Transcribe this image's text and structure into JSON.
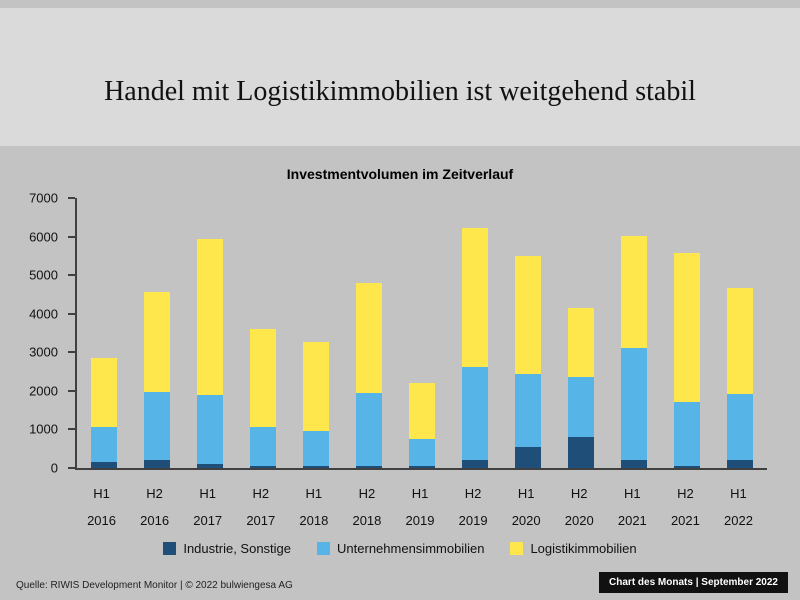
{
  "slide": {
    "title": "Handel mit Logistikimmobilien ist weitgehend stabil"
  },
  "chart_data": {
    "type": "bar",
    "stacked": true,
    "title": "Investmentvolumen im Zeitverlauf",
    "xlabel": "",
    "ylabel": "",
    "ylim": [
      0,
      7000
    ],
    "ytick_step": 1000,
    "grid": false,
    "legend_position": "bottom",
    "categories": [
      {
        "half": "H1",
        "year": "2016"
      },
      {
        "half": "H2",
        "year": "2016"
      },
      {
        "half": "H1",
        "year": "2017"
      },
      {
        "half": "H2",
        "year": "2017"
      },
      {
        "half": "H1",
        "year": "2018"
      },
      {
        "half": "H2",
        "year": "2018"
      },
      {
        "half": "H1",
        "year": "2019"
      },
      {
        "half": "H2",
        "year": "2019"
      },
      {
        "half": "H1",
        "year": "2020"
      },
      {
        "half": "H2",
        "year": "2020"
      },
      {
        "half": "H1",
        "year": "2021"
      },
      {
        "half": "H2",
        "year": "2021"
      },
      {
        "half": "H1",
        "year": "2022"
      }
    ],
    "series": [
      {
        "name": "Industrie, Sonstige",
        "key": "industrie-sonstige",
        "color": "#1f4e79",
        "values": [
          150,
          200,
          100,
          50,
          50,
          50,
          50,
          200,
          550,
          800,
          200,
          50,
          200
        ]
      },
      {
        "name": "Unternehmensimmobilien",
        "key": "unternehmensimmobilien",
        "color": "#56b4e6",
        "values": [
          900,
          1750,
          1800,
          1000,
          900,
          1900,
          700,
          2400,
          1900,
          1550,
          2900,
          1650,
          1700
        ]
      },
      {
        "name": "Logistikimmobilien",
        "key": "logistikimmobilien",
        "color": "#fde74c",
        "values": [
          1800,
          2600,
          4050,
          2550,
          2300,
          2850,
          1450,
          3600,
          3050,
          1800,
          2900,
          3850,
          2750
        ]
      }
    ]
  },
  "footer": {
    "source": "Quelle: RIWIS Development Monitor | © 2022 bulwiengesa AG",
    "badge": "Chart des Monats | September 2022"
  }
}
